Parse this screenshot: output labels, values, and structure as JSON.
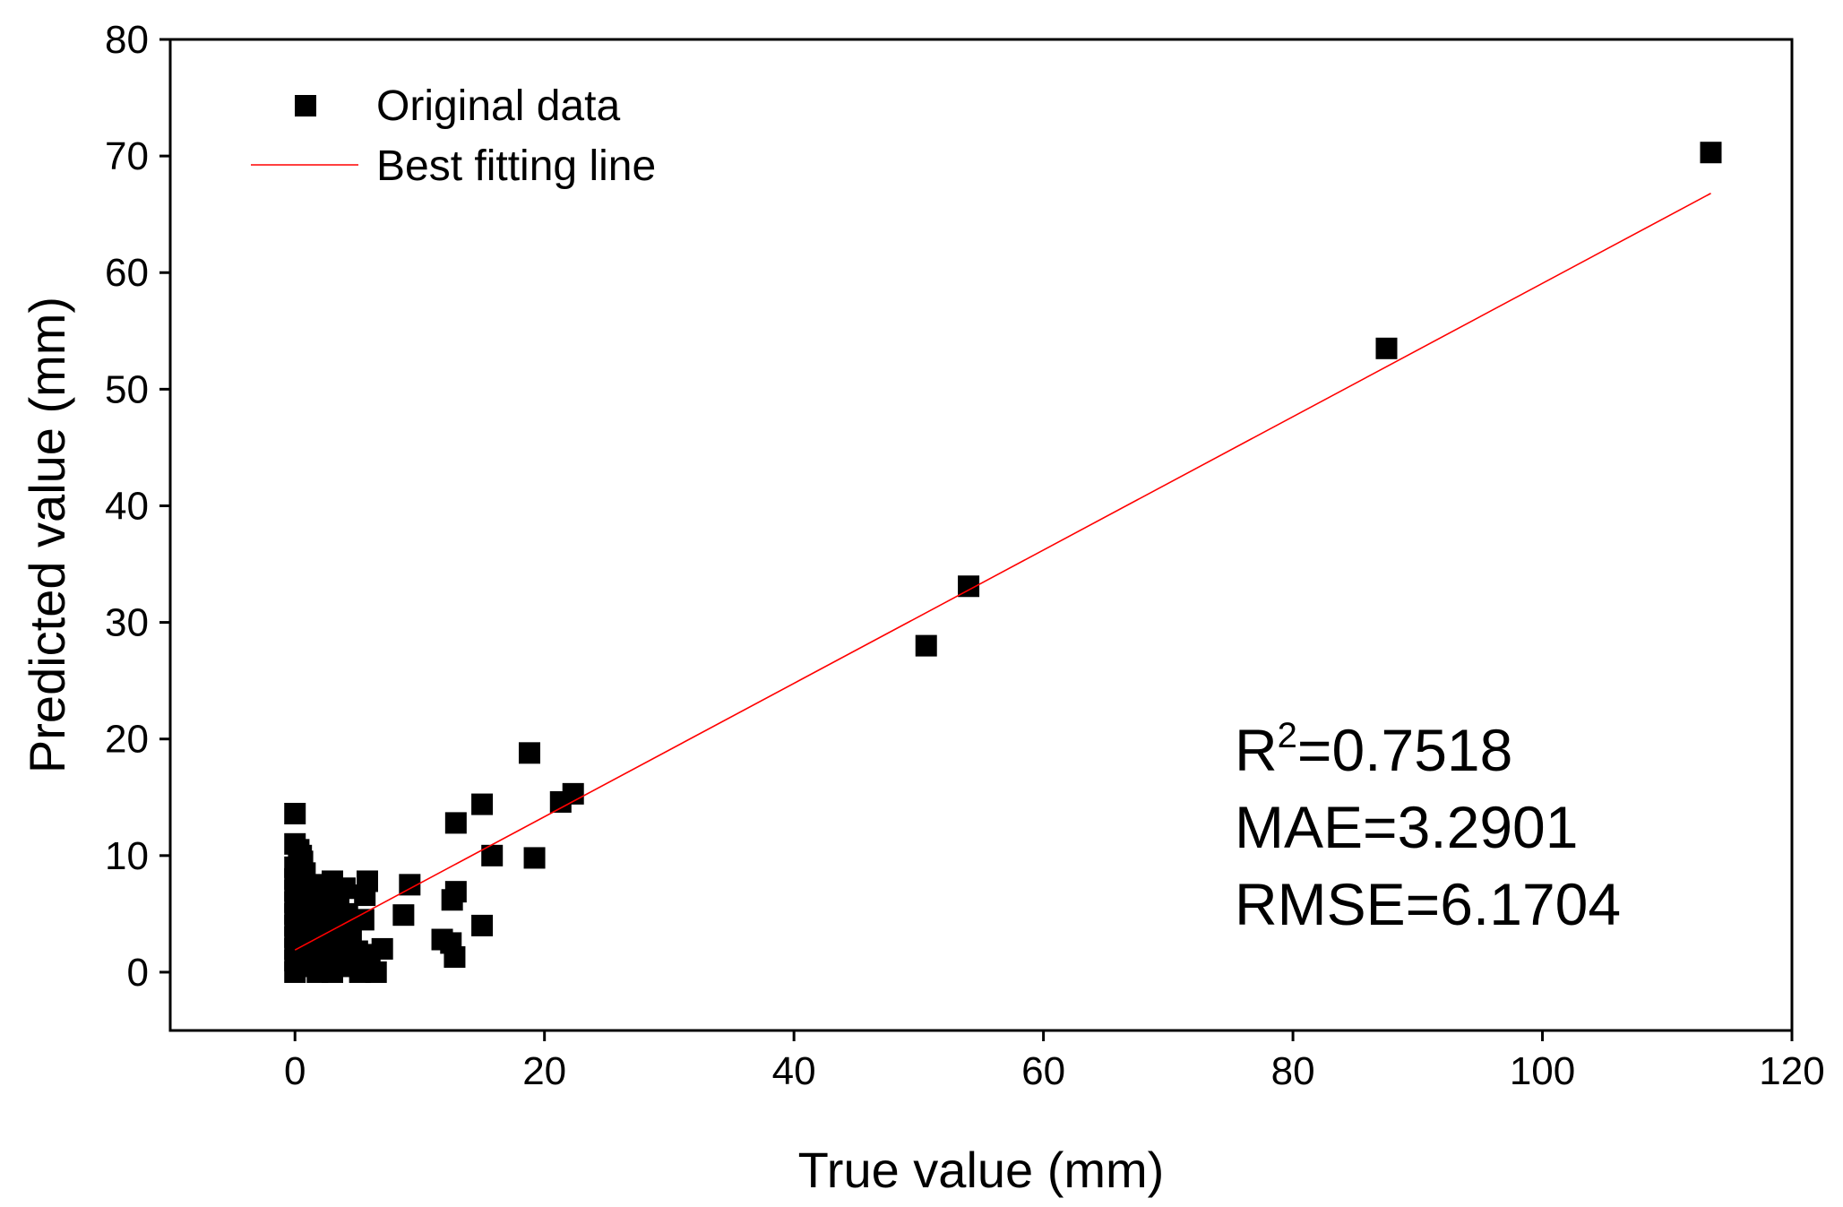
{
  "chart_data": {
    "type": "scatter",
    "title": "",
    "xlabel": "True value (mm)",
    "ylabel": "Predicted value (mm)",
    "xlim": [
      -10,
      120
    ],
    "ylim": [
      -5,
      80
    ],
    "xticks": [
      0,
      20,
      40,
      60,
      80,
      100,
      120
    ],
    "yticks": [
      0,
      10,
      20,
      30,
      40,
      50,
      60,
      70,
      80
    ],
    "legend": {
      "position": "top-left",
      "entries": [
        {
          "label": "Original data",
          "marker": "square",
          "color": "#000000"
        },
        {
          "label": "Best fitting line",
          "marker": "line",
          "color": "#ff0000"
        }
      ]
    },
    "series": [
      {
        "name": "Original data",
        "color": "#000000",
        "points": [
          [
            0,
            13.6
          ],
          [
            0,
            11
          ],
          [
            0.3,
            10.5
          ],
          [
            0.5,
            10
          ],
          [
            0,
            9
          ],
          [
            0,
            8
          ],
          [
            0,
            7
          ],
          [
            0,
            6
          ],
          [
            0,
            5
          ],
          [
            0,
            4
          ],
          [
            0,
            3
          ],
          [
            0,
            2
          ],
          [
            0,
            1
          ],
          [
            0,
            0
          ],
          [
            0.6,
            9.5
          ],
          [
            0.8,
            8.5
          ],
          [
            1,
            7.2
          ],
          [
            1.2,
            6
          ],
          [
            1.5,
            5
          ],
          [
            1,
            3.5
          ],
          [
            1.3,
            2
          ],
          [
            1,
            0.5
          ],
          [
            0.5,
            4.5
          ],
          [
            0.7,
            1
          ],
          [
            1.8,
            7.5
          ],
          [
            2,
            6.5
          ],
          [
            2.2,
            5.5
          ],
          [
            2.5,
            4.8
          ],
          [
            2.2,
            3
          ],
          [
            2,
            1.5
          ],
          [
            1.8,
            0
          ],
          [
            2.5,
            7
          ],
          [
            3,
            7.8
          ],
          [
            3.2,
            6.7
          ],
          [
            3.5,
            5.5
          ],
          [
            3,
            4
          ],
          [
            3.2,
            2.5
          ],
          [
            3.5,
            1
          ],
          [
            3,
            0
          ],
          [
            4,
            7.2
          ],
          [
            4.2,
            5
          ],
          [
            4.5,
            3.5
          ],
          [
            4.3,
            2
          ],
          [
            4.5,
            0.5
          ],
          [
            5,
            1.8
          ],
          [
            5.2,
            0
          ],
          [
            5.5,
            4.5
          ],
          [
            5.8,
            7.8
          ],
          [
            5.6,
            6.6
          ],
          [
            6,
            1.5
          ],
          [
            6.5,
            0
          ],
          [
            7,
            2
          ],
          [
            8.7,
            4.9
          ],
          [
            9.2,
            7.5
          ],
          [
            11.8,
            2.8
          ],
          [
            12.5,
            2.5
          ],
          [
            12.8,
            1.3
          ],
          [
            12.6,
            6.2
          ],
          [
            12.9,
            6.9
          ],
          [
            12.9,
            12.8
          ],
          [
            15,
            4
          ],
          [
            15,
            14.4
          ],
          [
            15.8,
            10
          ],
          [
            18.8,
            18.8
          ],
          [
            19.2,
            9.8
          ],
          [
            21.3,
            14.6
          ],
          [
            22.3,
            15.3
          ],
          [
            50.6,
            28
          ],
          [
            54,
            33.1
          ],
          [
            87.5,
            53.5
          ],
          [
            113.5,
            70.3
          ]
        ]
      }
    ],
    "fit_line": {
      "name": "Best fitting line",
      "color": "#ff0000",
      "x": [
        0,
        113.5
      ],
      "y": [
        1.9,
        66.8
      ]
    },
    "annotations": {
      "r2_label": "R",
      "r2_superscript": "2",
      "r2_value": "=0.7518",
      "mae": "MAE=3.2901",
      "rmse": "RMSE=6.1704"
    }
  }
}
